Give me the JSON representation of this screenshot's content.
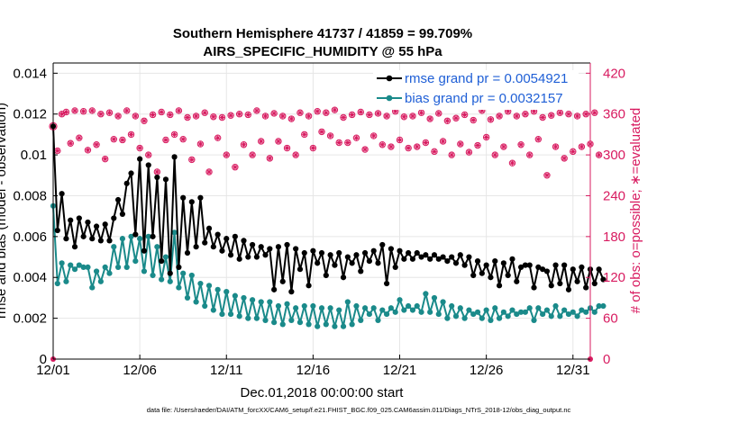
{
  "chart_data": {
    "type": "line",
    "title": "Southern Hemisphere 41737 / 41859 = 99.709%",
    "subtitle": "AIRS_SPECIFIC_HUMIDITY @ 55 hPa",
    "xlabel": "Dec.01,2018 00:00:00 start",
    "ylabel_left": "rmse and bias (model - observation)",
    "ylabel_right": "# of obs: o=possible; ∗=evaluated",
    "footer": "data file: /Users/raeder/DAI/ATM_forcXX/CAM6_setup/f.e21.FHIST_BGC.f09_025.CAM6assim.011/Diags_NTrS_2018-12/obs_diag_output.nc",
    "x_ticks": [
      "12/01",
      "12/06",
      "12/11",
      "12/16",
      "12/21",
      "12/26",
      "12/31"
    ],
    "x_tick_days": [
      0,
      5,
      10,
      15,
      20,
      25,
      30
    ],
    "xlim": [
      0,
      31
    ],
    "y_ticks_left": [
      "0",
      "0.002",
      "0.004",
      "0.006",
      "0.008",
      "0.01",
      "0.012",
      "0.014"
    ],
    "ylim_left": [
      0,
      0.0145
    ],
    "y_ticks_right": [
      "0",
      "60",
      "120",
      "180",
      "240",
      "300",
      "360",
      "420"
    ],
    "ylim_right": [
      0,
      435
    ],
    "grid": true,
    "legend_position": "top-right",
    "colors": {
      "rmse": "#000000",
      "bias": "#1a8a8a",
      "obs": "#d81b60"
    },
    "series": [
      {
        "name": "rmse grand pr = 0.0054921",
        "axis": "left",
        "color": "#000000",
        "x_start": 0,
        "x_step": 0.25,
        "values": [
          0.0114,
          0.0063,
          0.0081,
          0.0059,
          0.0068,
          0.0055,
          0.0069,
          0.006,
          0.0067,
          0.0059,
          0.0065,
          0.0058,
          0.0066,
          0.0058,
          0.0069,
          0.0078,
          0.0071,
          0.0086,
          0.0091,
          0.0061,
          0.0098,
          0.0053,
          0.0095,
          0.006,
          0.0089,
          0.0048,
          0.0088,
          0.0042,
          0.0099,
          0.0045,
          0.0079,
          0.0052,
          0.0077,
          0.0055,
          0.0079,
          0.0057,
          0.0064,
          0.0055,
          0.0061,
          0.0053,
          0.0059,
          0.0051,
          0.006,
          0.0049,
          0.0058,
          0.005,
          0.0056,
          0.005,
          0.0055,
          0.0051,
          0.0054,
          0.0034,
          0.0055,
          0.0038,
          0.0056,
          0.0033,
          0.0054,
          0.0044,
          0.0052,
          0.0036,
          0.0053,
          0.0047,
          0.0052,
          0.0041,
          0.0051,
          0.0046,
          0.0052,
          0.004,
          0.005,
          0.0047,
          0.0051,
          0.0043,
          0.0052,
          0.0048,
          0.0053,
          0.0047,
          0.0056,
          0.0037,
          0.0054,
          0.0045,
          0.0053,
          0.0049,
          0.0052,
          0.0049,
          0.0052,
          0.005,
          0.0051,
          0.0049,
          0.0051,
          0.0049,
          0.005,
          0.0048,
          0.005,
          0.0047,
          0.0051,
          0.0046,
          0.005,
          0.0041,
          0.0048,
          0.0042,
          0.0046,
          0.004,
          0.0048,
          0.0036,
          0.0047,
          0.0041,
          0.0049,
          0.0038,
          0.0045,
          0.0046,
          0.0046,
          0.0035,
          0.0045,
          0.0044,
          0.0043,
          0.0036,
          0.0046,
          0.0037,
          0.0046,
          0.0034,
          0.0044,
          0.0038,
          0.0045,
          0.0035,
          0.0044,
          0.0037,
          0.0044,
          0.0039
        ]
      },
      {
        "name": "bias grand pr = 0.0032157",
        "axis": "left",
        "color": "#1a8a8a",
        "x_start": 0,
        "x_step": 0.25,
        "values": [
          0.0075,
          0.0037,
          0.0047,
          0.0038,
          0.0046,
          0.0044,
          0.0046,
          0.0045,
          0.0045,
          0.0035,
          0.0043,
          0.0038,
          0.0045,
          0.0042,
          0.0055,
          0.0045,
          0.0059,
          0.0045,
          0.006,
          0.0048,
          0.0059,
          0.0043,
          0.006,
          0.0041,
          0.0055,
          0.0039,
          0.005,
          0.0038,
          0.0062,
          0.0035,
          0.0042,
          0.003,
          0.0041,
          0.0028,
          0.0037,
          0.0026,
          0.0036,
          0.0024,
          0.0034,
          0.0022,
          0.0033,
          0.0022,
          0.0031,
          0.0021,
          0.003,
          0.002,
          0.0029,
          0.002,
          0.0028,
          0.0019,
          0.0028,
          0.0018,
          0.0026,
          0.0017,
          0.0027,
          0.0019,
          0.0025,
          0.0018,
          0.0026,
          0.0017,
          0.0026,
          0.0016,
          0.0025,
          0.0017,
          0.0025,
          0.0016,
          0.0024,
          0.0016,
          0.0028,
          0.0017,
          0.0026,
          0.0019,
          0.0025,
          0.0022,
          0.0025,
          0.0019,
          0.0024,
          0.0022,
          0.0025,
          0.0023,
          0.0029,
          0.0024,
          0.0026,
          0.0024,
          0.0026,
          0.0023,
          0.0032,
          0.0023,
          0.003,
          0.0022,
          0.0028,
          0.002,
          0.0026,
          0.0021,
          0.0025,
          0.002,
          0.0024,
          0.0022,
          0.0023,
          0.002,
          0.0024,
          0.0019,
          0.0025,
          0.002,
          0.0023,
          0.0021,
          0.0024,
          0.0022,
          0.0023,
          0.0023,
          0.0025,
          0.0019,
          0.0025,
          0.0022,
          0.0024,
          0.0021,
          0.0026,
          0.0021,
          0.0024,
          0.0022,
          0.0023,
          0.0021,
          0.0024,
          0.0023,
          0.0025,
          0.0023,
          0.0026,
          0.0026
        ]
      },
      {
        "name": "obs possible (o) / evaluated (*)",
        "axis": "right",
        "color": "#d81b60",
        "x_start": 0.25,
        "x_step": 0.25,
        "values": [
          306,
          360,
          363,
          317,
          365,
          325,
          364,
          307,
          365,
          315,
          360,
          294,
          362,
          323,
          357,
          322,
          365,
          330,
          357,
          310,
          350,
          300,
          359,
          275,
          363,
          322,
          359,
          330,
          365,
          323,
          355,
          293,
          357,
          316,
          362,
          275,
          356,
          325,
          355,
          300,
          358,
          282,
          360,
          315,
          359,
          300,
          365,
          320,
          357,
          295,
          361,
          320,
          357,
          310,
          353,
          300,
          362,
          330,
          357,
          310,
          364,
          334,
          362,
          328,
          366,
          318,
          355,
          318,
          359,
          325,
          363,
          308,
          359,
          328,
          361,
          315,
          357,
          312,
          364,
          322,
          356,
          310,
          357,
          312,
          362,
          318,
          353,
          305,
          361,
          320,
          350,
          300,
          354,
          316,
          359,
          304,
          351,
          314,
          365,
          326,
          352,
          300,
          357,
          312,
          364,
          288,
          357,
          315,
          360,
          300,
          364,
          323,
          355,
          270,
          358,
          312,
          362,
          295,
          360,
          305,
          357,
          312,
          360,
          316,
          362,
          300
        ]
      }
    ]
  }
}
